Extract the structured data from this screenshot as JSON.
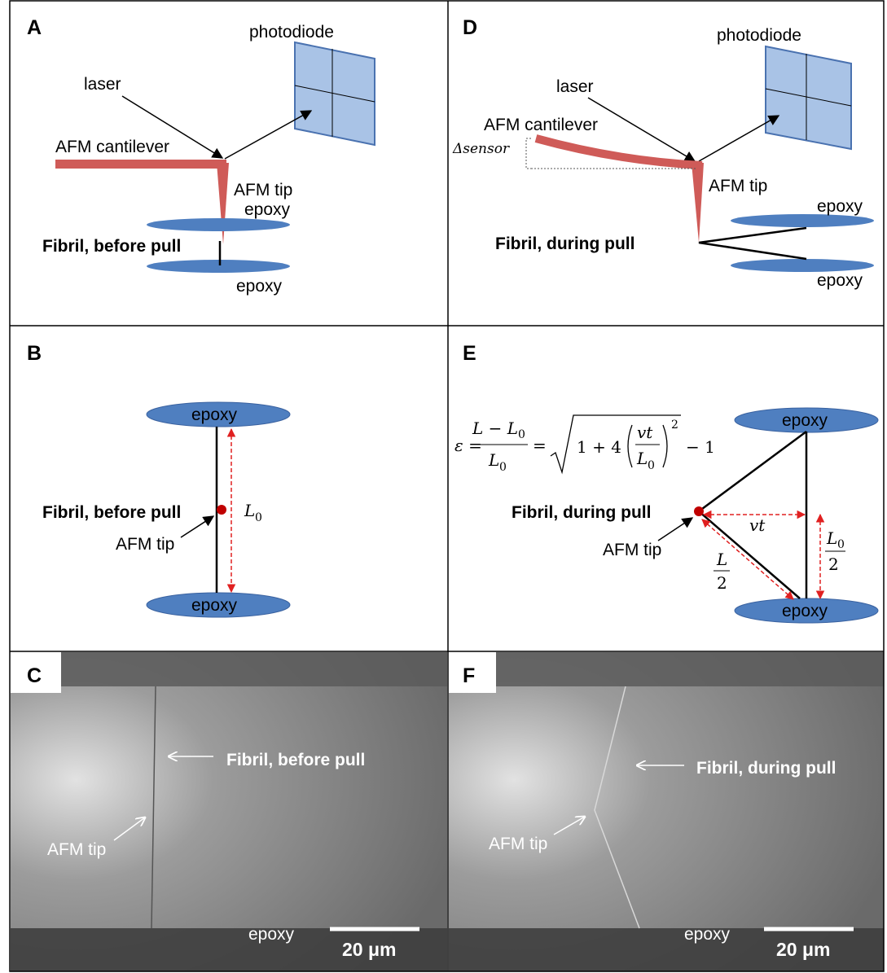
{
  "panels": {
    "a": {
      "label": "A",
      "photodiode": "photodiode",
      "laser": "laser",
      "cantilever": "AFM cantilever",
      "tip": "AFM tip",
      "epoxy_top": "epoxy",
      "fibril": "Fibril, before pull",
      "epoxy_bottom": "epoxy"
    },
    "d": {
      "label": "D",
      "photodiode": "photodiode",
      "laser": "laser",
      "cantilever": "AFM cantilever",
      "delta": "Δsensor",
      "tip": "AFM tip",
      "epoxy_top": "epoxy",
      "fibril": "Fibril, during pull",
      "epoxy_bottom": "epoxy"
    },
    "b": {
      "label": "B",
      "epoxy_top": "epoxy",
      "fibril": "Fibril, before pull",
      "tip": "AFM tip",
      "length": "L",
      "length_sub": "0",
      "epoxy_bottom": "epoxy"
    },
    "e": {
      "label": "E",
      "formula": {
        "lhs": "ε =",
        "num": "L − L",
        "num_sub": "0",
        "den": "L",
        "den_sub": "0",
        "eq": "=",
        "root_a": "1 + 4",
        "in_num": "vt",
        "in_den": "L",
        "in_den_sub": "0",
        "power": "2",
        "tail": "− 1"
      },
      "epoxy_top": "epoxy",
      "fibril": "Fibril, during pull",
      "tip": "AFM tip",
      "vt": "vt",
      "half_l_num": "L",
      "half_l_den": "2",
      "half_l0_num": "L",
      "half_l0_sub": "0",
      "half_l0_den": "2",
      "epoxy_bottom": "epoxy"
    },
    "c": {
      "label": "C",
      "fibril": "Fibril, before pull",
      "tip": "AFM tip",
      "epoxy": "epoxy",
      "scale": "20 μm"
    },
    "f": {
      "label": "F",
      "fibril": "Fibril, during pull",
      "tip": "AFM tip",
      "epoxy": "epoxy",
      "scale": "20 μm"
    }
  }
}
